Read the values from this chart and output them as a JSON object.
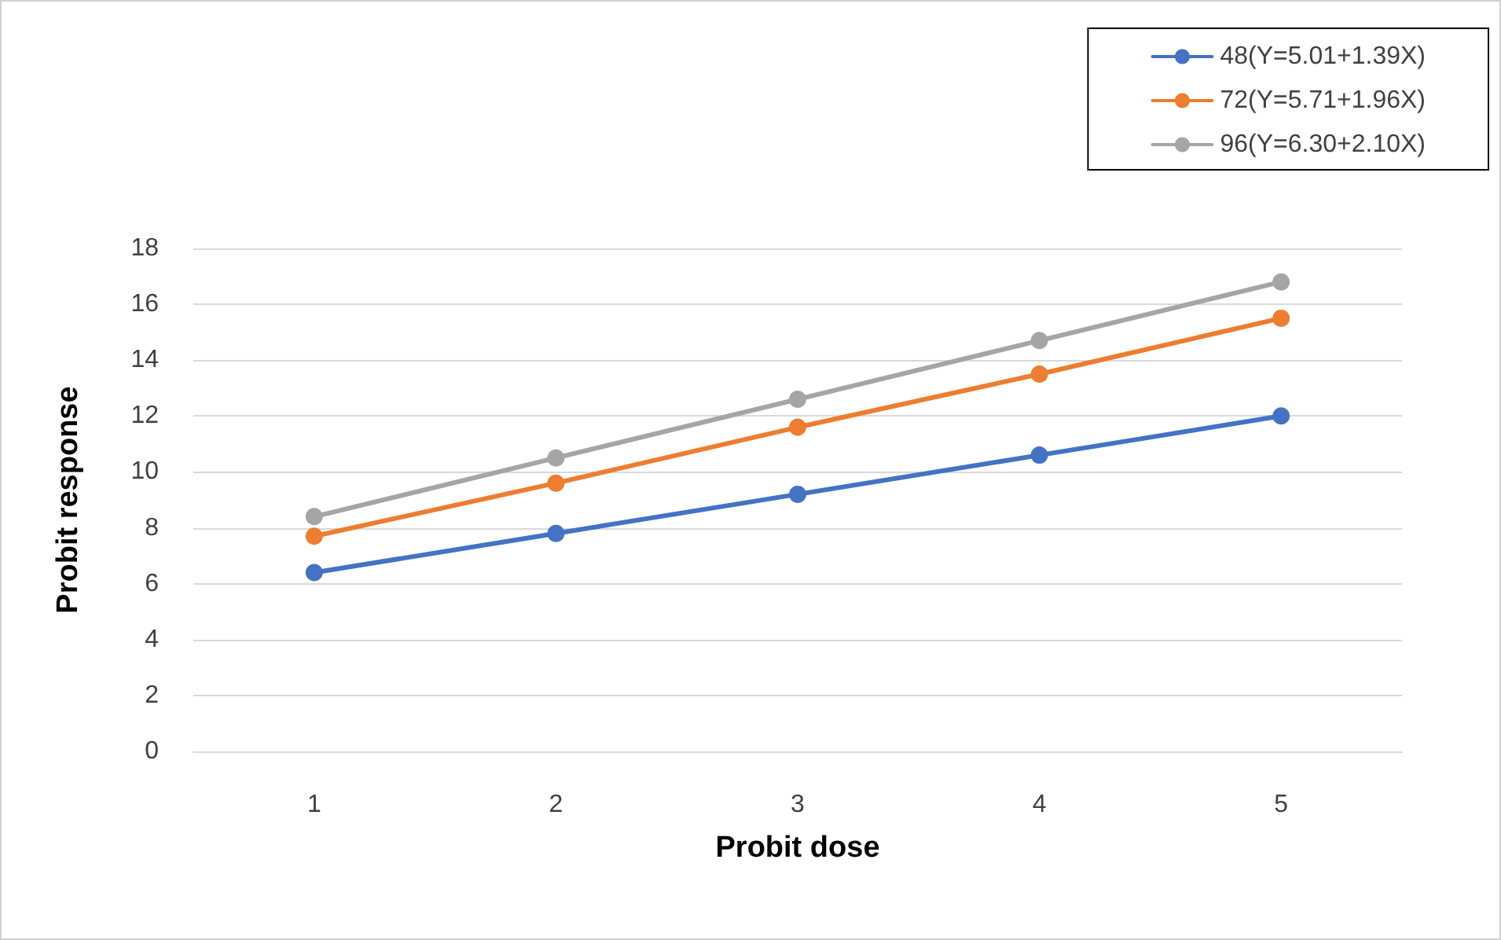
{
  "chart_data": {
    "type": "line",
    "xlabel": "Probit dose",
    "ylabel": "Probit response",
    "categories": [
      "1",
      "2",
      "3",
      "4",
      "5"
    ],
    "series": [
      {
        "name": "48(Y=5.01+1.39X)",
        "color": "#4472c4",
        "values": [
          6.4,
          7.8,
          9.2,
          10.6,
          12.0
        ]
      },
      {
        "name": "72(Y=5.71+1.96X)",
        "color": "#ed7d31",
        "values": [
          7.7,
          9.6,
          11.6,
          13.5,
          15.5
        ]
      },
      {
        "name": "96(Y=6.30+2.10X)",
        "color": "#a5a5a5",
        "values": [
          8.4,
          10.5,
          12.6,
          14.7,
          16.8
        ]
      }
    ],
    "ylim": [
      0,
      18
    ],
    "yticks": [
      0,
      2,
      4,
      6,
      8,
      10,
      12,
      14,
      16,
      18
    ],
    "grid": "y",
    "legend": "top right",
    "marker": "circle",
    "line_style": "solid"
  }
}
